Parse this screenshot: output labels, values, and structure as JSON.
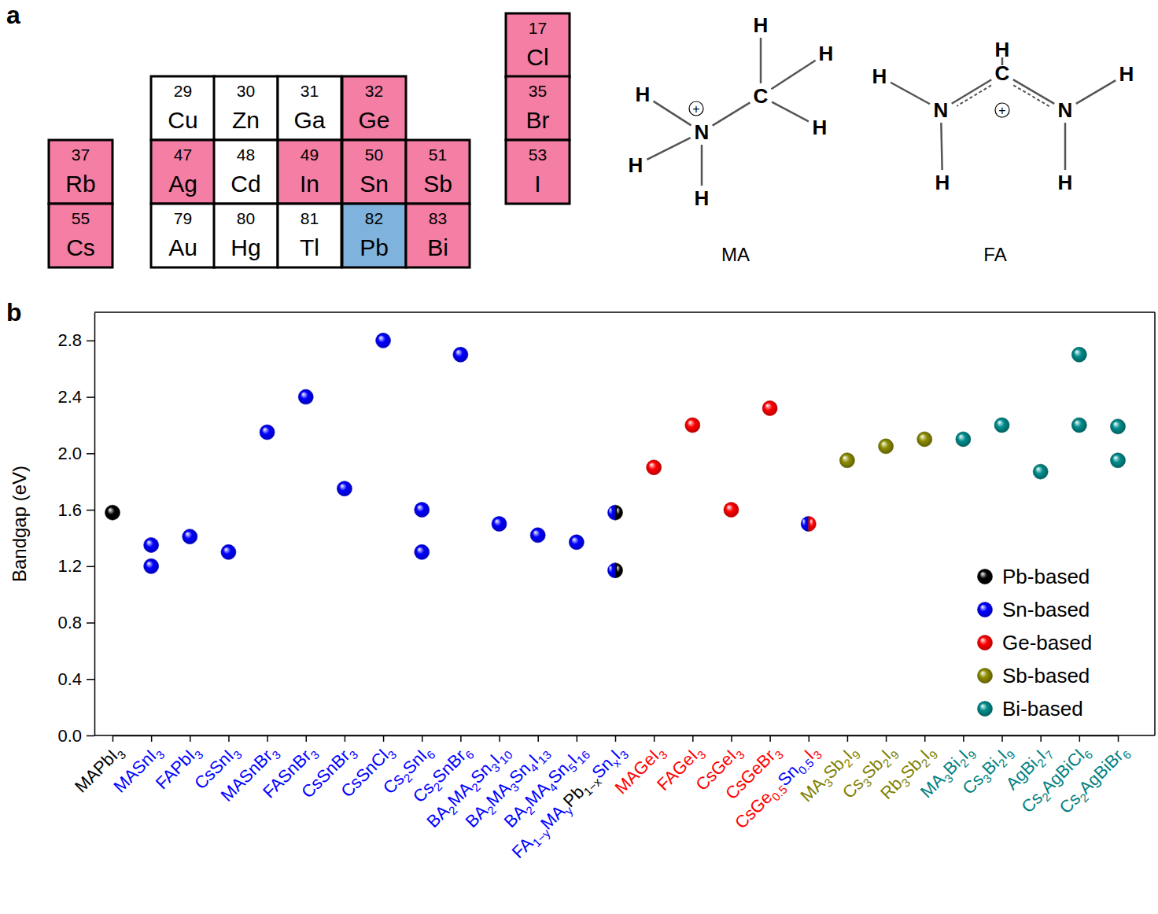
{
  "panels": [
    "a",
    "b"
  ],
  "periodic_table": {
    "cells": [
      {
        "number": 37,
        "symbol": "Rb",
        "group": 1,
        "period": 5,
        "color": "#f47ea4"
      },
      {
        "number": 55,
        "symbol": "Cs",
        "group": 1,
        "period": 6,
        "color": "#f47ea4"
      },
      {
        "number": 29,
        "symbol": "Cu",
        "group": 11,
        "period": 4,
        "color": "#ffffff"
      },
      {
        "number": 30,
        "symbol": "Zn",
        "group": 12,
        "period": 4,
        "color": "#ffffff"
      },
      {
        "number": 31,
        "symbol": "Ga",
        "group": 13,
        "period": 4,
        "color": "#ffffff"
      },
      {
        "number": 32,
        "symbol": "Ge",
        "group": 14,
        "period": 4,
        "color": "#f47ea4"
      },
      {
        "number": 47,
        "symbol": "Ag",
        "group": 11,
        "period": 5,
        "color": "#f47ea4"
      },
      {
        "number": 48,
        "symbol": "Cd",
        "group": 12,
        "period": 5,
        "color": "#ffffff"
      },
      {
        "number": 49,
        "symbol": "In",
        "group": 13,
        "period": 5,
        "color": "#f47ea4"
      },
      {
        "number": 50,
        "symbol": "Sn",
        "group": 14,
        "period": 5,
        "color": "#f47ea4"
      },
      {
        "number": 51,
        "symbol": "Sb",
        "group": 15,
        "period": 5,
        "color": "#f47ea4"
      },
      {
        "number": 79,
        "symbol": "Au",
        "group": 11,
        "period": 6,
        "color": "#ffffff"
      },
      {
        "number": 80,
        "symbol": "Hg",
        "group": 12,
        "period": 6,
        "color": "#ffffff"
      },
      {
        "number": 81,
        "symbol": "Tl",
        "group": 13,
        "period": 6,
        "color": "#ffffff"
      },
      {
        "number": 82,
        "symbol": "Pb",
        "group": 14,
        "period": 6,
        "color": "#7fb3dd"
      },
      {
        "number": 83,
        "symbol": "Bi",
        "group": 15,
        "period": 6,
        "color": "#f47ea4"
      },
      {
        "number": 17,
        "symbol": "Cl",
        "group": 17,
        "period": 3,
        "color": "#f47ea4"
      },
      {
        "number": 35,
        "symbol": "Br",
        "group": 17,
        "period": 4,
        "color": "#f47ea4"
      },
      {
        "number": 53,
        "symbol": "I",
        "group": 17,
        "period": 5,
        "color": "#f47ea4"
      }
    ]
  },
  "molecules": [
    {
      "name": "MA",
      "charge": "+",
      "atoms": [
        "N",
        "C",
        "H",
        "H",
        "H",
        "H",
        "H",
        "H"
      ]
    },
    {
      "name": "FA",
      "charge": "+",
      "atoms": [
        "C",
        "H",
        "N",
        "N",
        "H",
        "H",
        "H",
        "H"
      ]
    }
  ],
  "chart_data": {
    "type": "scatter",
    "y_label": "Bandgap (eV)",
    "categories": [
      "MAPbI3",
      "MASnI3",
      "FAPbI3",
      "CsSnI3",
      "MASnBr3",
      "FASnBr3",
      "CsSnBr3",
      "CsSnCl3",
      "Cs2SnI6",
      "Cs2SnBr6",
      "BA2MA2Sn3I10",
      "BA2MA3Sn4I13",
      "BA2MA4Sn5I16",
      "FA1−yMAyPb1−xSnxI3",
      "MAGeI3",
      "FAGeI3",
      "CsGeI3",
      "CsGeBr3",
      "CsGe0.5Sn0.5I3",
      "MA3Sb2I9",
      "Cs3Sb2I9",
      "Rb3Sb2I9",
      "MA3Bi2I9",
      "Cs3Bi2I9",
      "AgBi2I7",
      "Cs2AgBiCl6",
      "Cs2AgBiBr6"
    ],
    "series": [
      {
        "name": "Pb-based",
        "color": "#000000",
        "x": [
          "MAPbI3",
          "FA1−yMAyPb1−xSnxI3",
          "FA1−yMAyPb1−xSnxI3"
        ],
        "values": [
          1.58,
          1.58,
          1.17
        ]
      },
      {
        "name": "Sn-based",
        "color": "#0000ff",
        "x": [
          "MASnI3",
          "MASnI3",
          "FAPbI3",
          "CsSnI3",
          "MASnBr3",
          "FASnBr3",
          "CsSnBr3",
          "CsSnCl3",
          "Cs2SnI6",
          "Cs2SnI6",
          "Cs2SnBr6",
          "BA2MA2Sn3I10",
          "BA2MA3Sn4I13",
          "BA2MA4Sn5I16",
          "FA1−yMAyPb1−xSnxI3",
          "FA1−yMAyPb1−xSnxI3",
          "CsGe0.5Sn0.5I3"
        ],
        "values": [
          1.35,
          1.2,
          1.41,
          1.3,
          2.15,
          2.4,
          1.75,
          2.8,
          1.6,
          1.3,
          2.7,
          1.5,
          1.42,
          1.37,
          1.58,
          1.17,
          1.5
        ]
      },
      {
        "name": "Ge-based",
        "color": "#ff0000",
        "x": [
          "MAGeI3",
          "FAGeI3",
          "CsGeI3",
          "CsGeBr3",
          "CsGe0.5Sn0.5I3"
        ],
        "values": [
          1.9,
          2.2,
          1.6,
          2.32,
          1.5
        ]
      },
      {
        "name": "Sb-based",
        "color": "#808000",
        "x": [
          "MA3Sb2I9",
          "Cs3Sb2I9",
          "Rb3Sb2I9"
        ],
        "values": [
          1.95,
          2.05,
          2.1
        ]
      },
      {
        "name": "Bi-based",
        "color": "#008080",
        "x": [
          "MA3Bi2I9",
          "Cs3Bi2I9",
          "AgBi2I7",
          "Cs2AgBiCl6",
          "Cs2AgBiCl6",
          "Cs2AgBiBr6",
          "Cs2AgBiBr6"
        ],
        "values": [
          2.1,
          2.2,
          1.87,
          2.7,
          2.2,
          2.19,
          1.95
        ]
      }
    ],
    "ylim": [
      0,
      3
    ],
    "yticks": [
      {
        "value": 0,
        "label": "0.0"
      },
      0.4,
      0.8,
      1.2,
      1.6,
      {
        "value": 2,
        "label": "2.0"
      },
      2.4,
      2.8
    ],
    "grid": false,
    "legend": "lower right"
  }
}
